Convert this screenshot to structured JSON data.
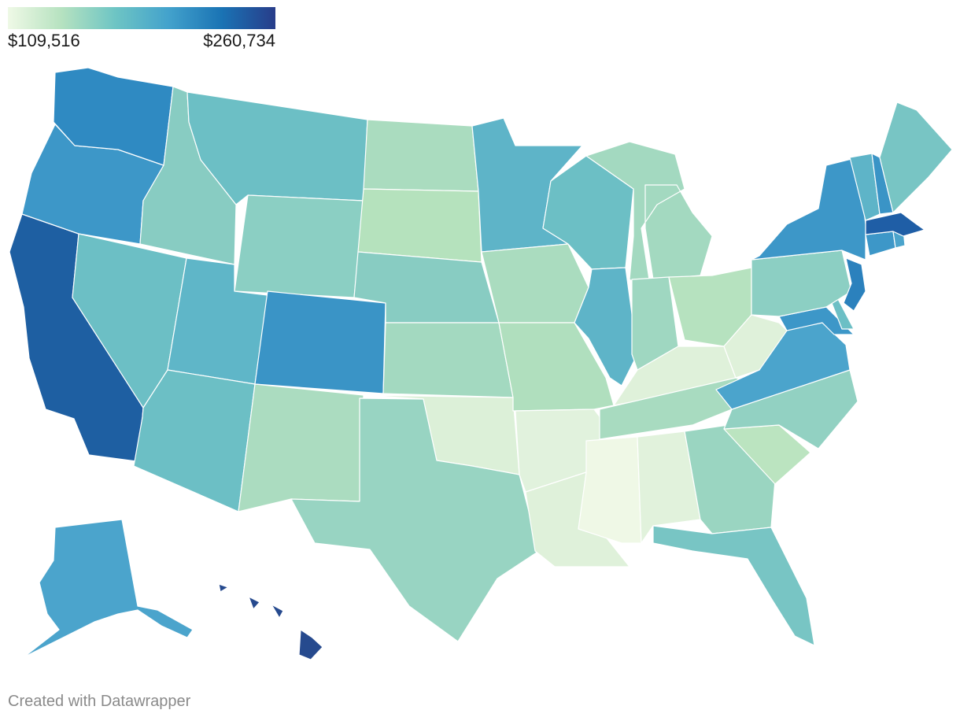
{
  "legend": {
    "min_label": "$109,516",
    "max_label": "$260,734",
    "min_value": 109516,
    "max_value": 260734,
    "colors": [
      "#eff9e6",
      "#b6e2c0",
      "#6ec5c4",
      "#43a2cc",
      "#1a73b4",
      "#283d8a"
    ]
  },
  "credit": "Created with Datawrapper",
  "states": [
    {
      "id": "CA",
      "color": "#1e5fa2"
    },
    {
      "id": "OR",
      "color": "#3d97c8"
    },
    {
      "id": "WA",
      "color": "#2f8ac2"
    },
    {
      "id": "NV",
      "color": "#6cbfc5"
    },
    {
      "id": "ID",
      "color": "#88ccc2"
    },
    {
      "id": "MT",
      "color": "#6cbfc5"
    },
    {
      "id": "WY",
      "color": "#8bcfc3"
    },
    {
      "id": "UT",
      "color": "#5fb6c8"
    },
    {
      "id": "AZ",
      "color": "#6cbfc5"
    },
    {
      "id": "CO",
      "color": "#3a94c6"
    },
    {
      "id": "NM",
      "color": "#abdcc0"
    },
    {
      "id": "ND",
      "color": "#aadcbf"
    },
    {
      "id": "SD",
      "color": "#b5e2bd"
    },
    {
      "id": "NE",
      "color": "#88ccc2"
    },
    {
      "id": "KS",
      "color": "#a3d9c0"
    },
    {
      "id": "OK",
      "color": "#dcf0d8"
    },
    {
      "id": "TX",
      "color": "#98d4c2"
    },
    {
      "id": "MN",
      "color": "#5eb4c8"
    },
    {
      "id": "IA",
      "color": "#aadcbf"
    },
    {
      "id": "MO",
      "color": "#b0dfbe"
    },
    {
      "id": "AR",
      "color": "#e1f2dd"
    },
    {
      "id": "LA",
      "color": "#dff1da"
    },
    {
      "id": "WI",
      "color": "#6cbfc5"
    },
    {
      "id": "IL",
      "color": "#5eb4c8"
    },
    {
      "id": "MI",
      "color": "#a3d9c0"
    },
    {
      "id": "IN",
      "color": "#9fd7c1"
    },
    {
      "id": "OH",
      "color": "#b6e2bf"
    },
    {
      "id": "KY",
      "color": "#dff1da"
    },
    {
      "id": "TN",
      "color": "#a8dbc0"
    },
    {
      "id": "MS",
      "color": "#eff8e6"
    },
    {
      "id": "AL",
      "color": "#e1f2dc"
    },
    {
      "id": "GA",
      "color": "#9ad5c1"
    },
    {
      "id": "FL",
      "color": "#78c5c4"
    },
    {
      "id": "SC",
      "color": "#bbe4c0"
    },
    {
      "id": "NC",
      "color": "#92d1c2"
    },
    {
      "id": "VA",
      "color": "#4ba4cc"
    },
    {
      "id": "WV",
      "color": "#dff1da"
    },
    {
      "id": "MD",
      "color": "#3d97c8"
    },
    {
      "id": "DE",
      "color": "#6cbfc5"
    },
    {
      "id": "PA",
      "color": "#8ccfc3"
    },
    {
      "id": "NJ",
      "color": "#2b81bd"
    },
    {
      "id": "NY",
      "color": "#3d97c8"
    },
    {
      "id": "CT",
      "color": "#3d97c8"
    },
    {
      "id": "RI",
      "color": "#4ba4cc"
    },
    {
      "id": "MA",
      "color": "#1f5ea6"
    },
    {
      "id": "VT",
      "color": "#5eb4c8"
    },
    {
      "id": "NH",
      "color": "#3a94c6"
    },
    {
      "id": "ME",
      "color": "#78c5c4"
    },
    {
      "id": "AK",
      "color": "#4ba4cc"
    },
    {
      "id": "HI",
      "color": "#264a8e"
    }
  ]
}
